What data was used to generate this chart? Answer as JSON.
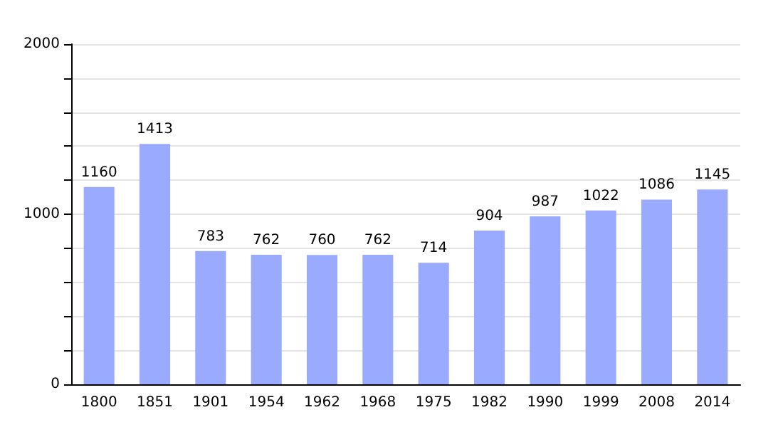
{
  "chart_data": {
    "type": "bar",
    "categories": [
      "1800",
      "1851",
      "1901",
      "1954",
      "1962",
      "1968",
      "1975",
      "1982",
      "1990",
      "1999",
      "2008",
      "2014"
    ],
    "values": [
      1160,
      1413,
      783,
      762,
      760,
      762,
      714,
      904,
      987,
      1022,
      1086,
      1145
    ],
    "color": "#99aaff",
    "data_labels": true,
    "grid": "y",
    "ylim": [
      0,
      2000
    ],
    "yticks": [
      0,
      {
        "value": 200,
        "label": null
      },
      {
        "value": 400,
        "label": null
      },
      {
        "value": 600,
        "label": null
      },
      {
        "value": 800,
        "label": null
      },
      1000,
      {
        "value": 1200,
        "label": null
      },
      {
        "value": 1400,
        "label": null
      },
      {
        "value": 1600,
        "label": null
      },
      {
        "value": 1800,
        "label": null
      },
      2000
    ]
  }
}
